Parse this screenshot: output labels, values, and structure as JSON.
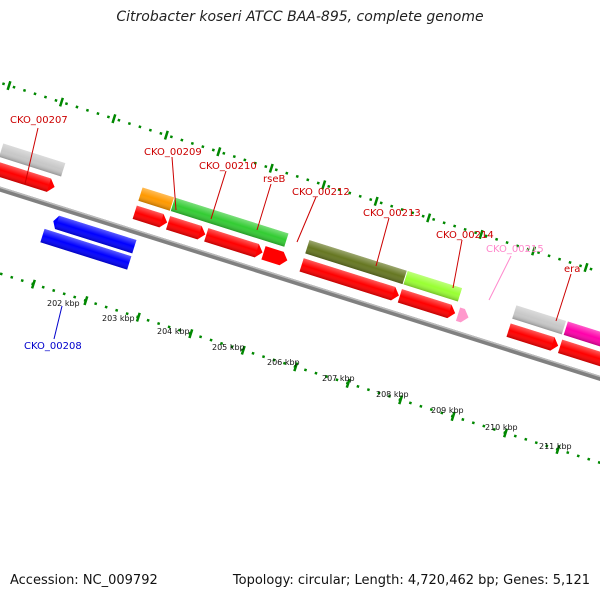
{
  "title": "Citrobacter koseri ATCC BAA-895, complete genome",
  "footer": {
    "accession": "Accession: NC_009792",
    "summary": "Topology: circular; Length: 4,720,462 bp; Genes: 5,121"
  },
  "scale_labels": [
    "202 kbp",
    "203 kbp",
    "204 kbp",
    "205 kbp",
    "206 kbp",
    "207 kbp",
    "208 kbp",
    "209 kbp",
    "210 kbp",
    "211 kbp"
  ],
  "gene_labels": [
    {
      "text": "CKO_00207",
      "color": "#cc0000"
    },
    {
      "text": "CKO_00208",
      "color": "#0000cc"
    },
    {
      "text": "CKO_00209",
      "color": "#cc0000"
    },
    {
      "text": "CKO_00210",
      "color": "#cc0000"
    },
    {
      "text": "rseB",
      "color": "#cc0000"
    },
    {
      "text": "CKO_00212",
      "color": "#cc0000"
    },
    {
      "text": "CKO_00213",
      "color": "#cc0000"
    },
    {
      "text": "CKO_00214",
      "color": "#cc0000"
    },
    {
      "text": "CKO_00215",
      "color": "#ff88cc"
    },
    {
      "text": "era",
      "color": "#cc0000"
    }
  ],
  "colors": {
    "cds": "#ff0000",
    "backbone": "#808080",
    "skew_dots": "#008800",
    "gene_blue": "#0000ff",
    "gene_gray": "#c8c8c8",
    "gene_orange": "#ff9900",
    "gene_green": "#33cc33",
    "gene_olive": "#667722",
    "gene_lime": "#99ff33",
    "gene_pink": "#ff99cc",
    "gene_magenta": "#ff00aa"
  }
}
